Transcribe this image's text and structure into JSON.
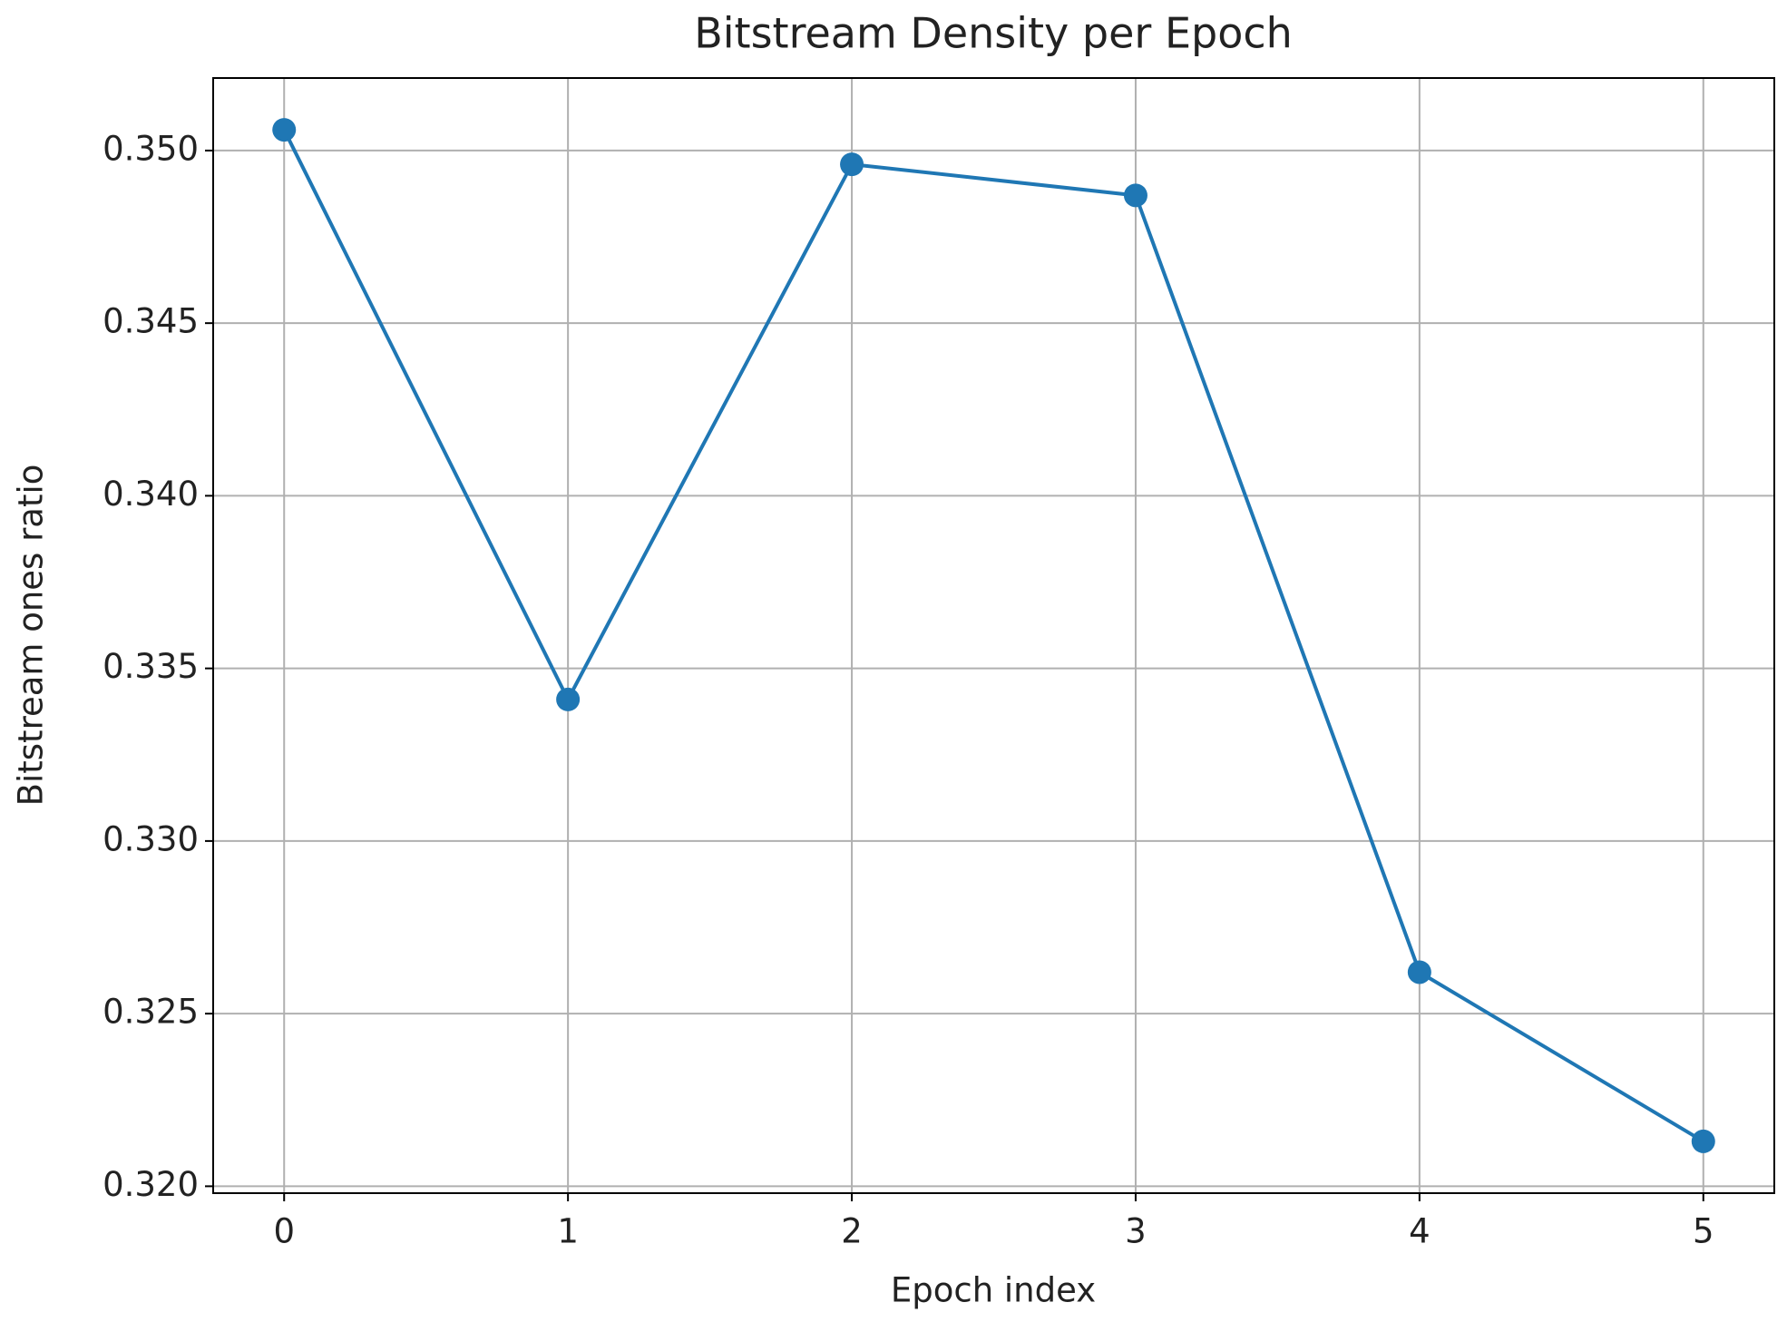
{
  "chart_data": {
    "type": "line",
    "title": "Bitstream Density per Epoch",
    "x_label": "Epoch index",
    "y_label": "Bitstream ones ratio",
    "x": [
      0,
      1,
      2,
      3,
      4,
      5
    ],
    "series": [
      {
        "color": "#1f77b4",
        "values": [
          0.3506,
          0.3341,
          0.3496,
          0.3487,
          0.3262,
          0.3213
        ]
      }
    ],
    "xlim": [
      -0.25,
      5.25
    ],
    "xticks": [
      0,
      1,
      2,
      3,
      4,
      5
    ],
    "ylim": [
      0.3198,
      0.3521
    ],
    "yticks": [
      {
        "value": 0.32,
        "label": "0.320"
      },
      0.325,
      {
        "value": 0.33,
        "label": "0.330"
      },
      0.335,
      {
        "value": 0.34,
        "label": "0.340"
      },
      0.345,
      {
        "value": 0.35,
        "label": "0.350"
      }
    ],
    "grid": true,
    "markers": true
  }
}
